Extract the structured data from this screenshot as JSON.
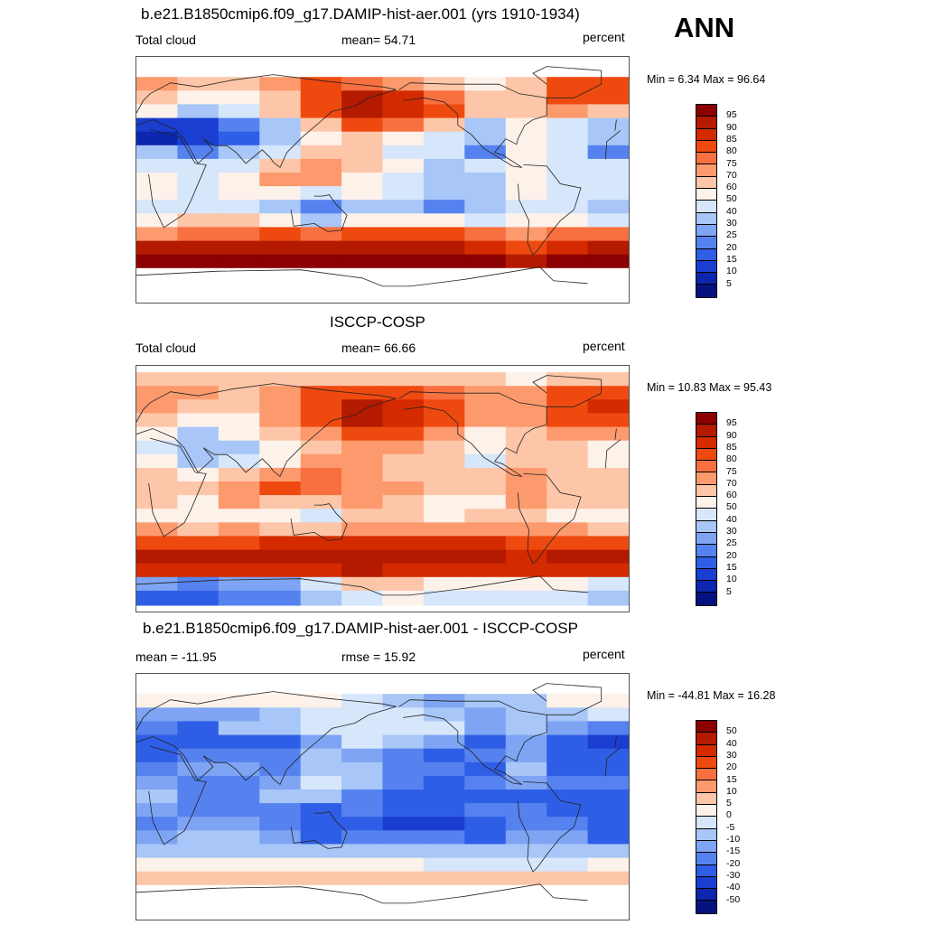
{
  "season": "ANN",
  "panels": [
    {
      "title": "b.e21.B1850cmip6.f09_g17.DAMIP-hist-aer.001 (yrs 1910-1934)",
      "left_label": "Total cloud",
      "center_label": "mean=  54.71",
      "right_label": "percent",
      "minmax": "Min =   6.34 Max =  96.64",
      "colorbar_labels": [
        "95",
        "90",
        "85",
        "80",
        "75",
        "70",
        "60",
        "50",
        "40",
        "30",
        "25",
        "20",
        "15",
        "10",
        "5"
      ]
    },
    {
      "title": "ISCCP-COSP",
      "left_label": "Total cloud",
      "center_label": "mean=  66.66",
      "right_label": "percent",
      "minmax": "Min =  10.83 Max =  95.43",
      "colorbar_labels": [
        "95",
        "90",
        "85",
        "80",
        "75",
        "70",
        "60",
        "50",
        "40",
        "30",
        "25",
        "20",
        "15",
        "10",
        "5"
      ]
    },
    {
      "title": "b.e21.B1850cmip6.f09_g17.DAMIP-hist-aer.001 - ISCCP-COSP",
      "left_label": "mean = -11.95",
      "center_label": "rmse =  15.92",
      "right_label": "percent",
      "minmax": "Min = -44.81 Max =  16.28",
      "colorbar_labels": [
        "50",
        "40",
        "30",
        "20",
        "15",
        "10",
        "5",
        "0",
        "-5",
        "-10",
        "-15",
        "-20",
        "-30",
        "-40",
        "-50"
      ]
    }
  ],
  "colors": {
    "palette": [
      "#8b0000",
      "#b31a00",
      "#d42a00",
      "#ee4a10",
      "#f97040",
      "#fc9a6e",
      "#fdc6a8",
      "#fdf2ea",
      "#d6e6fb",
      "#a8c6f7",
      "#7ea4f3",
      "#5582ee",
      "#2f5ee6",
      "#1a3ed0",
      "#0c26ae",
      "#06127e"
    ],
    "white": "#ffffff",
    "coast": "#222222"
  },
  "chart_data": [
    {
      "type": "heatmap",
      "title": "b.e21.B1850cmip6.f09_g17.DAMIP-hist-aer.001 (yrs 1910-1934)",
      "variable": "Total cloud",
      "units": "percent",
      "mean": 54.71,
      "min": 6.34,
      "max": 96.64,
      "levels": [
        5,
        10,
        15,
        20,
        25,
        30,
        40,
        50,
        60,
        70,
        75,
        80,
        85,
        90,
        95
      ],
      "xlim": [
        0,
        360
      ],
      "ylim": [
        -90,
        90
      ],
      "latitudes": [
        80,
        70,
        60,
        50,
        40,
        30,
        20,
        10,
        0,
        -10,
        -20,
        -30,
        -40,
        -50,
        -60,
        -70,
        -80
      ],
      "longitudes": [
        15,
        45,
        75,
        105,
        135,
        165,
        195,
        225,
        255,
        285,
        315,
        345
      ],
      "values": [
        [
          null,
          null,
          null,
          null,
          null,
          null,
          null,
          null,
          null,
          null,
          null,
          null
        ],
        [
          70,
          64,
          62,
          70,
          80,
          78,
          70,
          62,
          58,
          62,
          84,
          80
        ],
        [
          60,
          52,
          56,
          66,
          82,
          90,
          86,
          76,
          62,
          64,
          82,
          84
        ],
        [
          50,
          30,
          48,
          64,
          84,
          92,
          88,
          80,
          60,
          62,
          70,
          64
        ],
        [
          12,
          10,
          22,
          38,
          62,
          82,
          78,
          62,
          30,
          52,
          48,
          32
        ],
        [
          8,
          10,
          18,
          36,
          58,
          62,
          56,
          44,
          34,
          52,
          44,
          30
        ],
        [
          34,
          22,
          34,
          40,
          66,
          60,
          46,
          40,
          24,
          56,
          40,
          22
        ],
        [
          48,
          40,
          48,
          60,
          74,
          60,
          50,
          38,
          44,
          58,
          46,
          44
        ],
        [
          58,
          42,
          54,
          72,
          70,
          58,
          48,
          36,
          38,
          52,
          44,
          40
        ],
        [
          52,
          40,
          54,
          50,
          40,
          50,
          42,
          30,
          38,
          54,
          42,
          44
        ],
        [
          40,
          40,
          42,
          34,
          20,
          36,
          30,
          24,
          30,
          48,
          40,
          30
        ],
        [
          56,
          60,
          62,
          54,
          32,
          52,
          56,
          50,
          48,
          58,
          56,
          40
        ],
        [
          74,
          76,
          78,
          80,
          76,
          80,
          80,
          82,
          78,
          74,
          76,
          78
        ],
        [
          90,
          90,
          92,
          92,
          92,
          92,
          90,
          90,
          88,
          84,
          88,
          90
        ],
        [
          96,
          95,
          95,
          95,
          95,
          95,
          95,
          95,
          95,
          92,
          95,
          96
        ],
        [
          null,
          null,
          null,
          null,
          null,
          null,
          null,
          null,
          null,
          null,
          null,
          null
        ],
        [
          null,
          null,
          null,
          null,
          null,
          null,
          null,
          null,
          null,
          null,
          null,
          null
        ]
      ]
    },
    {
      "type": "heatmap",
      "title": "ISCCP-COSP",
      "variable": "Total cloud",
      "units": "percent",
      "mean": 66.66,
      "min": 10.83,
      "max": 95.43,
      "levels": [
        5,
        10,
        15,
        20,
        25,
        30,
        40,
        50,
        60,
        70,
        75,
        80,
        85,
        90,
        95
      ],
      "xlim": [
        0,
        360
      ],
      "ylim": [
        -90,
        90
      ],
      "latitudes": [
        80,
        70,
        60,
        50,
        40,
        30,
        20,
        10,
        0,
        -10,
        -20,
        -30,
        -40,
        -50,
        -60,
        -70,
        -80
      ],
      "longitudes": [
        15,
        45,
        75,
        105,
        135,
        165,
        195,
        225,
        255,
        285,
        315,
        345
      ],
      "values": [
        [
          60,
          60,
          60,
          62,
          64,
          62,
          62,
          62,
          60,
          58,
          62,
          60
        ],
        [
          72,
          70,
          66,
          70,
          80,
          82,
          80,
          76,
          70,
          70,
          80,
          84
        ],
        [
          74,
          66,
          68,
          74,
          84,
          90,
          88,
          80,
          72,
          72,
          84,
          86
        ],
        [
          66,
          52,
          56,
          70,
          84,
          90,
          88,
          82,
          70,
          72,
          82,
          80
        ],
        [
          54,
          38,
          50,
          62,
          74,
          82,
          82,
          74,
          58,
          66,
          72,
          70
        ],
        [
          42,
          30,
          38,
          56,
          66,
          72,
          72,
          66,
          52,
          62,
          66,
          56
        ],
        [
          50,
          36,
          46,
          58,
          72,
          70,
          62,
          60,
          48,
          66,
          62,
          52
        ],
        [
          60,
          58,
          64,
          74,
          76,
          70,
          66,
          62,
          62,
          70,
          66,
          62
        ],
        [
          66,
          62,
          72,
          80,
          78,
          74,
          70,
          60,
          62,
          74,
          68,
          66
        ],
        [
          66,
          58,
          70,
          68,
          64,
          70,
          66,
          56,
          58,
          74,
          64,
          66
        ],
        [
          58,
          52,
          56,
          50,
          46,
          60,
          62,
          58,
          60,
          64,
          58,
          56
        ],
        [
          70,
          68,
          70,
          66,
          60,
          70,
          72,
          70,
          72,
          70,
          70,
          68
        ],
        [
          82,
          82,
          84,
          86,
          86,
          86,
          86,
          88,
          86,
          82,
          84,
          84
        ],
        [
          90,
          90,
          92,
          90,
          92,
          92,
          90,
          92,
          90,
          88,
          90,
          90
        ],
        [
          88,
          86,
          88,
          88,
          88,
          90,
          88,
          88,
          88,
          86,
          88,
          88
        ],
        [
          26,
          24,
          26,
          28,
          40,
          60,
          60,
          56,
          54,
          50,
          50,
          48
        ],
        [
          18,
          16,
          20,
          22,
          30,
          48,
          50,
          46,
          44,
          40,
          40,
          36
        ]
      ]
    },
    {
      "type": "heatmap",
      "title": "b.e21.B1850cmip6.f09_g17.DAMIP-hist-aer.001 - ISCCP-COSP",
      "units": "percent",
      "mean": -11.95,
      "rmse": 15.92,
      "min": -44.81,
      "max": 16.28,
      "levels": [
        -50,
        -40,
        -30,
        -20,
        -15,
        -10,
        -5,
        0,
        5,
        10,
        15,
        20,
        30,
        40,
        50
      ],
      "xlim": [
        0,
        360
      ],
      "ylim": [
        -90,
        90
      ],
      "latitudes": [
        80,
        70,
        60,
        50,
        40,
        30,
        20,
        10,
        0,
        -10,
        -20,
        -30,
        -40,
        -50,
        -60,
        -70,
        -80
      ],
      "longitudes": [
        15,
        45,
        75,
        105,
        135,
        165,
        195,
        225,
        255,
        285,
        315,
        345
      ],
      "values": [
        [
          null,
          null,
          null,
          null,
          null,
          null,
          null,
          null,
          null,
          null,
          null,
          null
        ],
        [
          4,
          2,
          2,
          4,
          2,
          -4,
          -8,
          -12,
          -8,
          -6,
          2,
          0
        ],
        [
          -14,
          -14,
          -12,
          -10,
          -4,
          -2,
          -4,
          -6,
          -12,
          -10,
          -6,
          -4
        ],
        [
          -16,
          -22,
          -10,
          -8,
          -4,
          -2,
          -2,
          -4,
          -12,
          -10,
          -14,
          -16
        ],
        [
          -30,
          -24,
          -24,
          -22,
          -14,
          -4,
          -6,
          -14,
          -24,
          -14,
          -24,
          -32
        ],
        [
          -30,
          -20,
          -20,
          -20,
          -10,
          -12,
          -16,
          -22,
          -18,
          -12,
          -22,
          -26
        ],
        [
          -16,
          -14,
          -12,
          -18,
          -6,
          -10,
          -16,
          -20,
          -24,
          -10,
          -22,
          -30
        ],
        [
          -12,
          -18,
          -16,
          -14,
          -2,
          -10,
          -16,
          -24,
          -18,
          -12,
          -20,
          -18
        ],
        [
          -8,
          -20,
          -18,
          -8,
          -8,
          -16,
          -22,
          -24,
          -24,
          -22,
          -24,
          -26
        ],
        [
          -14,
          -18,
          -16,
          -18,
          -24,
          -20,
          -24,
          -26,
          -20,
          -20,
          -22,
          -22
        ],
        [
          -18,
          -12,
          -14,
          -16,
          -26,
          -24,
          -32,
          -34,
          -30,
          -16,
          -18,
          -26
        ],
        [
          -14,
          -8,
          -8,
          -12,
          -28,
          -18,
          -16,
          -20,
          -24,
          -12,
          -14,
          -28
        ],
        [
          -8,
          -6,
          -6,
          -6,
          -10,
          -6,
          -6,
          -6,
          -8,
          -8,
          -8,
          -6
        ],
        [
          0,
          0,
          0,
          2,
          0,
          0,
          0,
          -2,
          -2,
          -4,
          -2,
          0
        ],
        [
          8,
          9,
          7,
          7,
          7,
          5,
          7,
          7,
          7,
          6,
          7,
          8
        ],
        [
          null,
          null,
          null,
          null,
          null,
          null,
          null,
          null,
          null,
          null,
          null,
          null
        ],
        [
          null,
          null,
          null,
          null,
          null,
          null,
          null,
          null,
          null,
          null,
          null,
          null
        ]
      ]
    }
  ]
}
